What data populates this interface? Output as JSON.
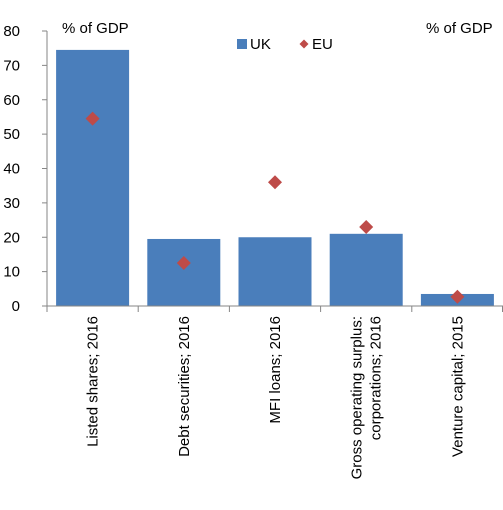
{
  "chart_data": {
    "type": "bar",
    "categories": [
      [
        "Listed shares; 2016"
      ],
      [
        "Debt securities; 2016"
      ],
      [
        "MFI loans; 2016"
      ],
      [
        "Gross operating surplus:",
        "corporations; 2016"
      ],
      [
        "Venture capital; 2015"
      ]
    ],
    "series": [
      {
        "name": "UK",
        "type": "bar",
        "color": "#4a7ebb",
        "values": [
          74.5,
          19.5,
          20,
          21,
          3.5
        ]
      },
      {
        "name": "EU",
        "type": "scatter",
        "marker": "diamond",
        "color": "#be4b48",
        "values": [
          54.5,
          12.5,
          36,
          23,
          2.7
        ]
      }
    ],
    "ylim": [
      0,
      80
    ],
    "yticks": [
      "0",
      "10",
      "20",
      "30",
      "40",
      "50",
      "60",
      "70",
      "80"
    ],
    "ylabel_left": "% of GDP",
    "ylabel_right": "% of GDP",
    "legend_position": "top",
    "grid": false
  }
}
